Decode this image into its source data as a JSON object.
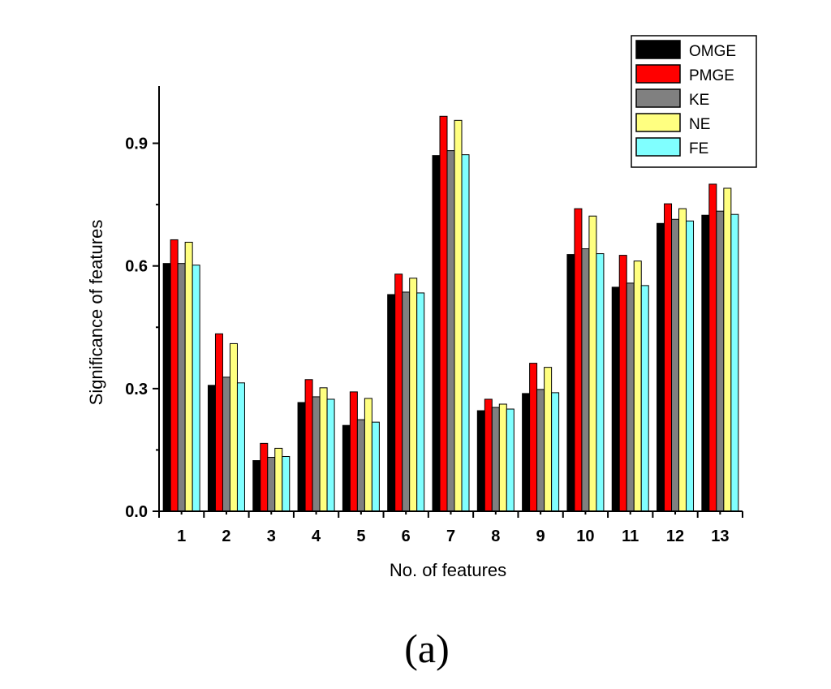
{
  "chart_data": {
    "type": "bar",
    "title": "",
    "xlabel": "No. of features",
    "ylabel": "Significance of features",
    "ylim": [
      0,
      1.04
    ],
    "yticks": [
      0.0,
      0.3,
      0.6,
      0.9
    ],
    "ytick_labels": [
      "0.0",
      "0.3",
      "0.6",
      "0.9"
    ],
    "categories": [
      "1",
      "2",
      "3",
      "4",
      "5",
      "6",
      "7",
      "8",
      "9",
      "10",
      "11",
      "12",
      "13"
    ],
    "legend_position": "top-right",
    "series": [
      {
        "name": "OMGE",
        "color": "#000000",
        "values": [
          0.606,
          0.308,
          0.124,
          0.266,
          0.21,
          0.53,
          0.87,
          0.246,
          0.288,
          0.628,
          0.548,
          0.704,
          0.724
        ]
      },
      {
        "name": "PMGE",
        "color": "#ff0000",
        "values": [
          0.664,
          0.434,
          0.166,
          0.322,
          0.292,
          0.58,
          0.966,
          0.274,
          0.362,
          0.74,
          0.626,
          0.752,
          0.8
        ]
      },
      {
        "name": "KE",
        "color": "#808080",
        "values": [
          0.606,
          0.328,
          0.132,
          0.28,
          0.224,
          0.536,
          0.882,
          0.254,
          0.298,
          0.642,
          0.558,
          0.714,
          0.734
        ]
      },
      {
        "name": "NE",
        "color": "#ffff80",
        "values": [
          0.658,
          0.41,
          0.154,
          0.302,
          0.276,
          0.57,
          0.956,
          0.262,
          0.352,
          0.722,
          0.612,
          0.74,
          0.79
        ]
      },
      {
        "name": "FE",
        "color": "#80ffff",
        "values": [
          0.602,
          0.314,
          0.134,
          0.274,
          0.218,
          0.534,
          0.872,
          0.25,
          0.29,
          0.63,
          0.552,
          0.71,
          0.726
        ]
      }
    ]
  },
  "caption": "(a)"
}
